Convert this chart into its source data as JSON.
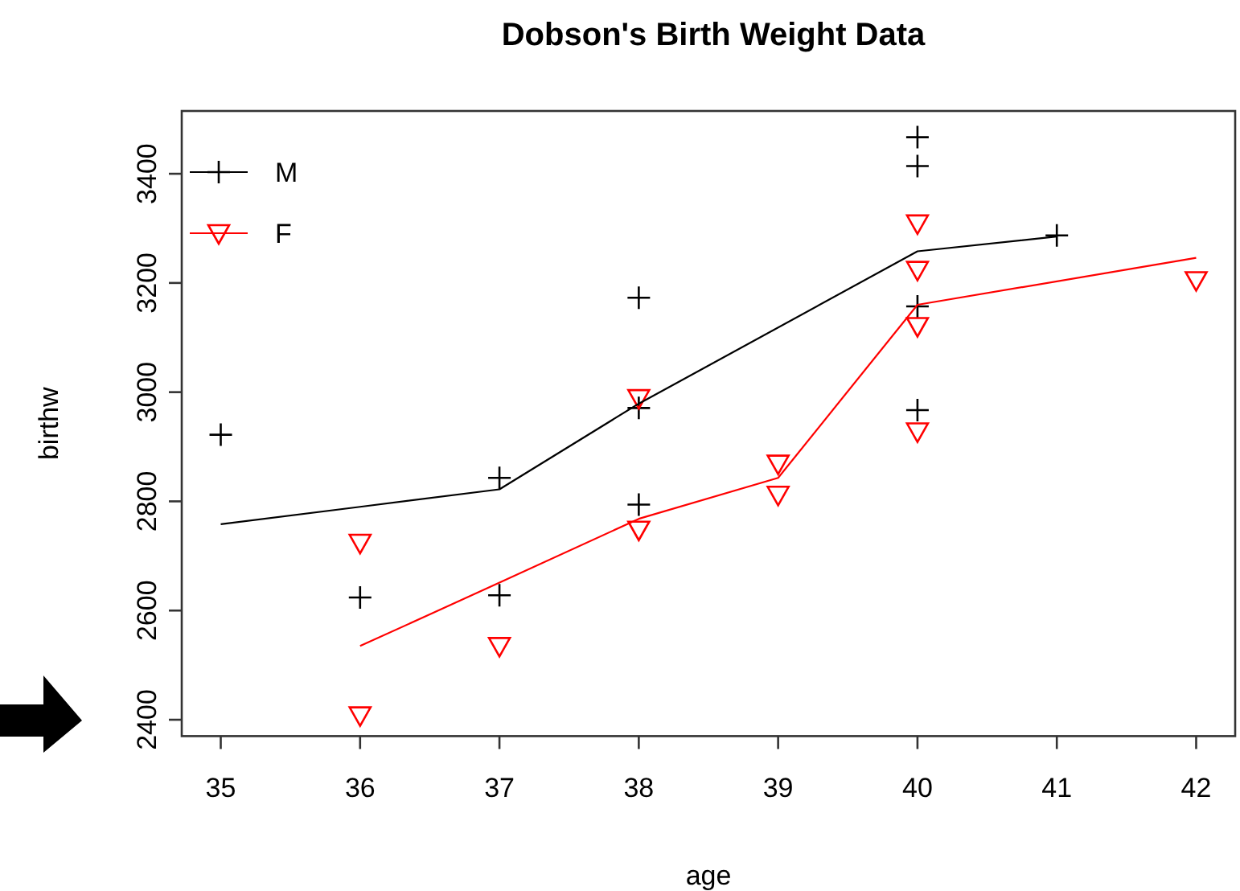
{
  "chart_data": {
    "type": "scatter",
    "title": "Dobson's Birth Weight Data",
    "xlabel": "age",
    "ylabel": "birthw",
    "xlim": [
      34.72,
      42.28
    ],
    "ylim": [
      2370,
      3515
    ],
    "xticks": [
      35,
      36,
      37,
      38,
      39,
      40,
      41,
      42
    ],
    "yticks": [
      2400,
      2600,
      2800,
      3000,
      3200,
      3400
    ],
    "grid": false,
    "legend": "top left",
    "series": [
      {
        "name": "M",
        "marker": "cross",
        "color": "#000000",
        "x": [
          35,
          36,
          37,
          37,
          38,
          38,
          38,
          40,
          40,
          40,
          40,
          41
        ],
        "values": [
          2922,
          2624,
          2843,
          2628,
          3173,
          2971,
          2794,
          3467,
          3414,
          3157,
          2967,
          3287
        ]
      },
      {
        "name": "F",
        "marker": "triangle",
        "color": "#ff0000",
        "x": [
          36,
          36,
          37,
          38,
          38,
          39,
          39,
          40,
          40,
          40,
          40,
          42
        ],
        "values": [
          2724,
          2408,
          2535,
          2989,
          2748,
          2869,
          2812,
          3309,
          3224,
          3121,
          2928,
          3205
        ]
      },
      {
        "type": "line",
        "marker": "none",
        "line_style": "solid",
        "color": "#000000",
        "x": [
          35,
          36,
          37,
          38,
          40,
          41
        ],
        "values": [
          2758,
          2790,
          2822,
          2979,
          3258,
          3285
        ]
      },
      {
        "type": "line",
        "marker": "none",
        "line_style": "solid",
        "color": "#ff0000",
        "x": [
          36,
          37,
          38,
          39,
          40,
          42
        ],
        "values": [
          2535,
          2651,
          2768,
          2843,
          3160,
          3246
        ]
      }
    ]
  }
}
